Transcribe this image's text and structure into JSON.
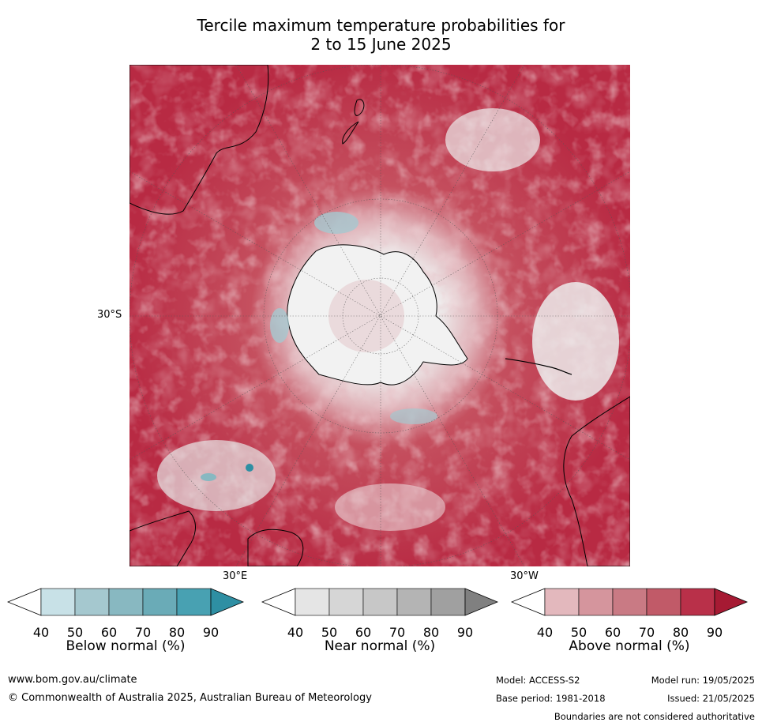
{
  "title": {
    "line1": "Tercile maximum temperature probabilities for",
    "line2": "2 to 15 June 2025"
  },
  "map": {
    "projection": "south-polar",
    "lat_label": "30°S",
    "lon_label_east": "30°E",
    "lon_label_west": "30°W"
  },
  "colorbars": [
    {
      "label": "Below normal (%)",
      "ticks": [
        "40",
        "50",
        "60",
        "70",
        "80",
        "90"
      ],
      "colors": [
        "#ffffff",
        "#c8e1e7",
        "#a5c8cf",
        "#88b8c1",
        "#6aabb7",
        "#48a1b2",
        "#2e8fa3"
      ]
    },
    {
      "label": "Near normal (%)",
      "ticks": [
        "40",
        "50",
        "60",
        "70",
        "80",
        "90"
      ],
      "colors": [
        "#ffffff",
        "#e5e5e5",
        "#d6d6d6",
        "#c7c7c7",
        "#b4b4b4",
        "#a0a0a0",
        "#808080"
      ]
    },
    {
      "label": "Above normal (%)",
      "ticks": [
        "40",
        "50",
        "60",
        "70",
        "80",
        "90"
      ],
      "colors": [
        "#ffffff",
        "#e3b8bd",
        "#d5959d",
        "#c97a84",
        "#c15a68",
        "#b93049",
        "#a61a33"
      ]
    }
  ],
  "footer": {
    "website": "www.bom.gov.au/climate",
    "copyright": "© Commonwealth of Australia 2025, Australian Bureau of Meteorology",
    "model": "Model: ACCESS-S2",
    "base_period": "Base period: 1981-2018",
    "model_run": "Model run: 19/05/2025",
    "issued": "Issued: 21/05/2025",
    "disclaimer": "Boundaries are not considered authoritative"
  }
}
